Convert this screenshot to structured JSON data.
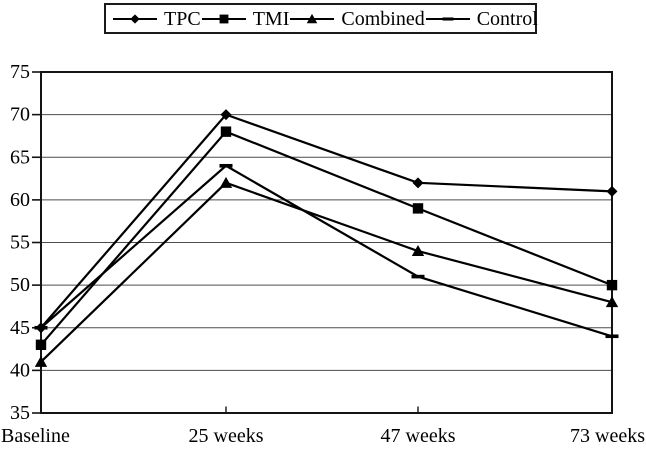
{
  "figure": {
    "background": "#ffffff"
  },
  "legend": {
    "position": "top",
    "border": true
  },
  "chart_data": {
    "type": "line",
    "categories": [
      "Baseline",
      "25 weeks",
      "47 weeks",
      "73 weeks"
    ],
    "series": [
      {
        "name": "TPC",
        "marker": "diamond",
        "values": [
          45,
          70,
          62,
          61
        ]
      },
      {
        "name": "TMI",
        "marker": "square",
        "values": [
          43,
          68,
          59,
          50
        ]
      },
      {
        "name": "Combined",
        "marker": "triangle",
        "values": [
          41,
          62,
          54,
          48
        ]
      },
      {
        "name": "Control",
        "marker": "dash",
        "values": [
          45,
          64,
          51,
          44
        ]
      }
    ],
    "title": "",
    "xlabel": "",
    "ylabel": "",
    "ylim": [
      35,
      75
    ],
    "ytick_step": 5,
    "yticks": [
      35,
      40,
      45,
      50,
      55,
      60,
      65,
      70,
      75
    ],
    "grid": true,
    "legend_position": "top",
    "line_color": "#000000",
    "grid_color": "#4d4d4d",
    "axis_color": "#141414",
    "label_color": "#000000"
  }
}
